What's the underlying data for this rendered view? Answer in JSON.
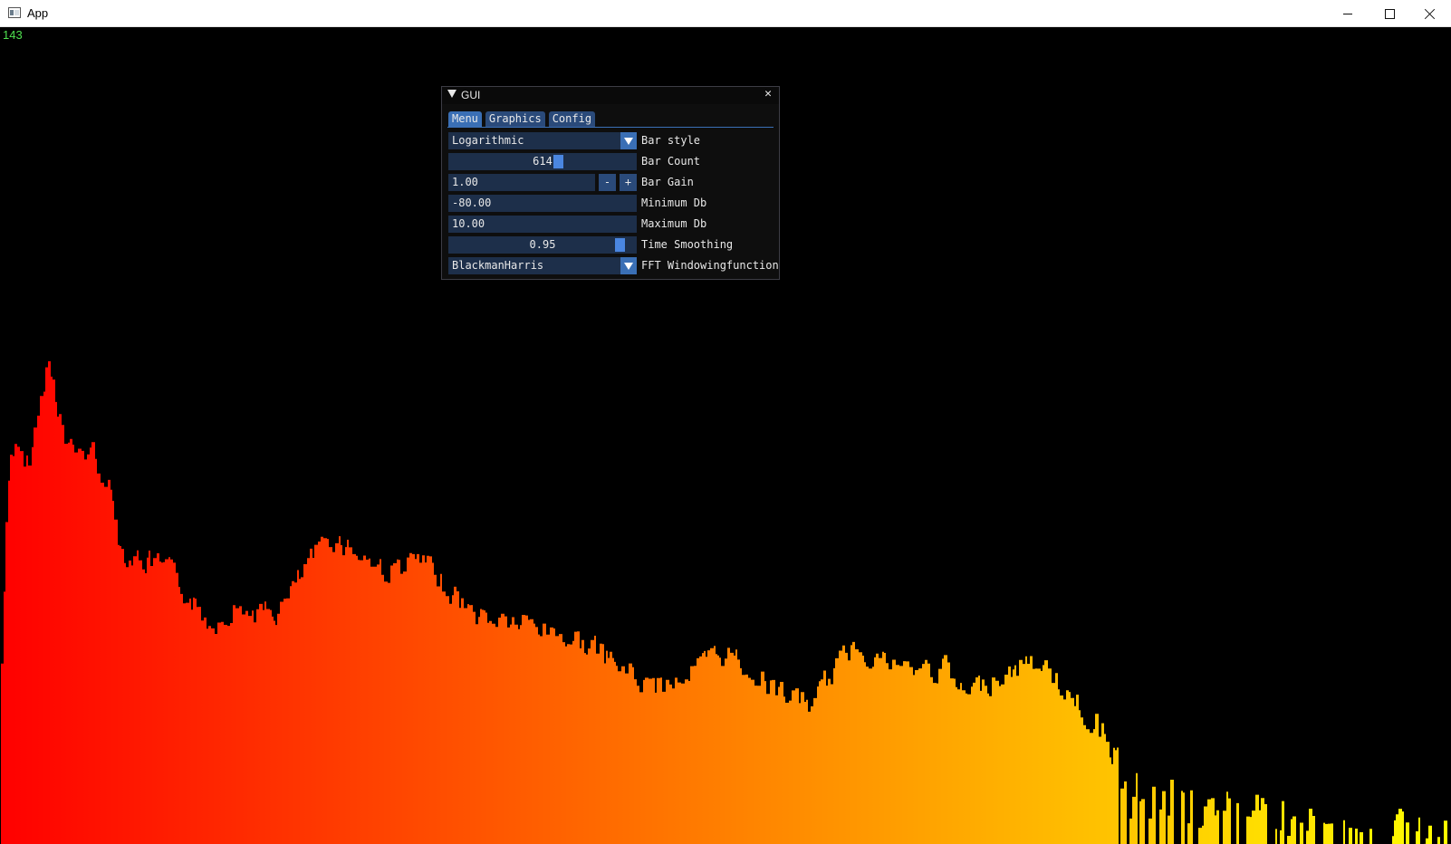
{
  "window": {
    "title": "App",
    "minimize_icon": "minimize-icon",
    "maximize_icon": "maximize-icon",
    "close_icon": "close-icon"
  },
  "overlay": {
    "fps": "143"
  },
  "gui": {
    "title": "GUI",
    "close_glyph": "✕",
    "tabs": [
      "Menu",
      "Graphics",
      "Config"
    ],
    "active_tab": "Menu",
    "controls": {
      "bar_style": {
        "label": "Bar style",
        "value": "Logarithmic"
      },
      "bar_count": {
        "label": "Bar Count",
        "value": "614"
      },
      "bar_gain": {
        "label": "Bar Gain",
        "value": "1.00",
        "minus": "-",
        "plus": "+"
      },
      "minimum_db": {
        "label": "Minimum Db",
        "value": "-80.00"
      },
      "maximum_db": {
        "label": "Maximum Db",
        "value": "10.00"
      },
      "time_smoothing": {
        "label": "Time Smoothing",
        "value": "0.95"
      },
      "fft_window": {
        "label": "FFT Windowingfunction",
        "value": "BlackmanHarris"
      }
    }
  },
  "colors": {
    "accent": "#3a6fb5",
    "frame_bg": "#1d2f4a",
    "spectrum_start": "#ff0000",
    "spectrum_end": "#ffff00",
    "fps": "#4fe04f"
  }
}
